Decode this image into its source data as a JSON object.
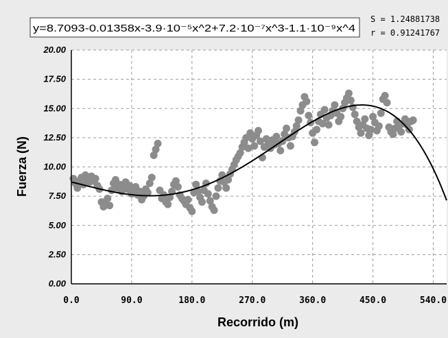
{
  "chart_data": {
    "type": "scatter",
    "equation": "y=8.7093-0.01358x-3.9·10⁻⁵x^2+7.2·10⁻⁷x^3-1.1·10⁻⁹x^4",
    "stats": {
      "s": "S = 1.24881738",
      "r": "r = 0.91241767"
    },
    "xlabel": "Recorrido (m)",
    "ylabel": "Fuerza (N)",
    "xlim": [
      0,
      560
    ],
    "ylim": [
      0,
      20
    ],
    "xticks": [
      "0.0",
      "90.0",
      "180.0",
      "270.0",
      "360.0",
      "450.0",
      "540.0"
    ],
    "yticks": [
      "0.00",
      "2.50",
      "5.00",
      "7.50",
      "10.00",
      "12.50",
      "15.00",
      "17.50",
      "20.00"
    ],
    "grid": true,
    "point_color": "#8c8c8c",
    "curve_color": "#000000",
    "curve_coefficients": [
      8.7093,
      -0.01358,
      -3.9e-05,
      7.2e-07,
      -1.1e-09
    ],
    "points": [
      [
        3,
        9.0
      ],
      [
        6,
        8.6
      ],
      [
        9,
        8.2
      ],
      [
        12,
        8.8
      ],
      [
        15,
        9.1
      ],
      [
        18,
        8.5
      ],
      [
        21,
        9.3
      ],
      [
        24,
        8.9
      ],
      [
        27,
        8.7
      ],
      [
        30,
        9.2
      ],
      [
        33,
        8.8
      ],
      [
        36,
        9.0
      ],
      [
        39,
        8.4
      ],
      [
        42,
        8.1
      ],
      [
        45,
        7.0
      ],
      [
        48,
        6.6
      ],
      [
        51,
        6.9
      ],
      [
        54,
        7.3
      ],
      [
        57,
        6.7
      ],
      [
        60,
        8.0
      ],
      [
        63,
        8.6
      ],
      [
        66,
        8.9
      ],
      [
        69,
        8.2
      ],
      [
        72,
        8.5
      ],
      [
        75,
        7.9
      ],
      [
        78,
        8.3
      ],
      [
        81,
        8.7
      ],
      [
        84,
        8.1
      ],
      [
        87,
        8.4
      ],
      [
        90,
        7.7
      ],
      [
        93,
        8.0
      ],
      [
        96,
        8.3
      ],
      [
        99,
        7.6
      ],
      [
        102,
        7.9
      ],
      [
        105,
        7.2
      ],
      [
        108,
        7.5
      ],
      [
        111,
        8.1
      ],
      [
        114,
        7.8
      ],
      [
        117,
        8.6
      ],
      [
        120,
        9.1
      ],
      [
        123,
        11.0
      ],
      [
        126,
        11.5
      ],
      [
        129,
        12.0
      ],
      [
        132,
        8.0
      ],
      [
        135,
        7.3
      ],
      [
        138,
        7.6
      ],
      [
        141,
        7.0
      ],
      [
        144,
        6.8
      ],
      [
        147,
        7.4
      ],
      [
        150,
        7.9
      ],
      [
        153,
        8.5
      ],
      [
        156,
        8.8
      ],
      [
        159,
        8.3
      ],
      [
        162,
        7.6
      ],
      [
        165,
        7.3
      ],
      [
        168,
        7.1
      ],
      [
        171,
        6.8
      ],
      [
        174,
        7.2
      ],
      [
        177,
        6.5
      ],
      [
        180,
        6.2
      ],
      [
        183,
        7.8
      ],
      [
        186,
        8.5
      ],
      [
        189,
        7.9
      ],
      [
        192,
        7.4
      ],
      [
        195,
        7.0
      ],
      [
        198,
        8.0
      ],
      [
        201,
        8.6
      ],
      [
        204,
        7.7
      ],
      [
        207,
        7.1
      ],
      [
        210,
        6.6
      ],
      [
        213,
        6.3
      ],
      [
        216,
        7.5
      ],
      [
        219,
        8.2
      ],
      [
        222,
        8.8
      ],
      [
        225,
        9.3
      ],
      [
        228,
        8.7
      ],
      [
        231,
        8.2
      ],
      [
        234,
        8.9
      ],
      [
        237,
        9.4
      ],
      [
        240,
        9.8
      ],
      [
        243,
        10.2
      ],
      [
        246,
        10.6
      ],
      [
        249,
        10.9
      ],
      [
        252,
        11.2
      ],
      [
        255,
        11.7
      ],
      [
        258,
        12.1
      ],
      [
        261,
        12.5
      ],
      [
        264,
        11.6
      ],
      [
        267,
        12.9
      ],
      [
        270,
        12.4
      ],
      [
        273,
        11.8
      ],
      [
        276,
        12.7
      ],
      [
        279,
        13.1
      ],
      [
        282,
        12.2
      ],
      [
        285,
        10.8
      ],
      [
        288,
        11.7
      ],
      [
        291,
        12.4
      ],
      [
        294,
        12.0
      ],
      [
        297,
        11.6
      ],
      [
        300,
        12.3
      ],
      [
        303,
        11.9
      ],
      [
        306,
        12.6
      ],
      [
        309,
        12.0
      ],
      [
        312,
        11.4
      ],
      [
        315,
        12.2
      ],
      [
        318,
        12.8
      ],
      [
        321,
        13.3
      ],
      [
        324,
        12.5
      ],
      [
        327,
        11.8
      ],
      [
        330,
        12.6
      ],
      [
        333,
        13.0
      ],
      [
        336,
        13.5
      ],
      [
        339,
        14.0
      ],
      [
        342,
        14.8
      ],
      [
        345,
        15.3
      ],
      [
        348,
        16.0
      ],
      [
        351,
        15.6
      ],
      [
        354,
        14.4
      ],
      [
        357,
        13.8
      ],
      [
        360,
        12.9
      ],
      [
        363,
        12.1
      ],
      [
        366,
        13.2
      ],
      [
        369,
        13.9
      ],
      [
        372,
        14.5
      ],
      [
        375,
        13.7
      ],
      [
        378,
        14.9
      ],
      [
        381,
        14.2
      ],
      [
        384,
        13.6
      ],
      [
        387,
        14.4
      ],
      [
        390,
        14.8
      ],
      [
        393,
        15.3
      ],
      [
        396,
        14.6
      ],
      [
        399,
        13.9
      ],
      [
        402,
        14.3
      ],
      [
        405,
        15.0
      ],
      [
        408,
        15.5
      ],
      [
        411,
        15.9
      ],
      [
        414,
        16.3
      ],
      [
        417,
        15.7
      ],
      [
        420,
        15.1
      ],
      [
        423,
        14.5
      ],
      [
        426,
        13.9
      ],
      [
        429,
        13.4
      ],
      [
        432,
        12.9
      ],
      [
        435,
        13.6
      ],
      [
        438,
        14.1
      ],
      [
        441,
        13.3
      ],
      [
        444,
        12.7
      ],
      [
        447,
        13.2
      ],
      [
        450,
        14.3
      ],
      [
        453,
        13.8
      ],
      [
        456,
        13.1
      ],
      [
        459,
        13.5
      ],
      [
        462,
        14.6
      ],
      [
        465,
        15.8
      ],
      [
        468,
        16.1
      ],
      [
        471,
        15.5
      ],
      [
        474,
        13.4
      ],
      [
        477,
        13.0
      ],
      [
        480,
        12.8
      ],
      [
        483,
        13.3
      ],
      [
        486,
        13.9
      ],
      [
        489,
        13.5
      ],
      [
        492,
        13.0
      ],
      [
        495,
        13.7
      ],
      [
        498,
        14.1
      ],
      [
        501,
        13.6
      ],
      [
        504,
        13.2
      ],
      [
        507,
        13.9
      ],
      [
        510,
        14.0
      ]
    ]
  }
}
